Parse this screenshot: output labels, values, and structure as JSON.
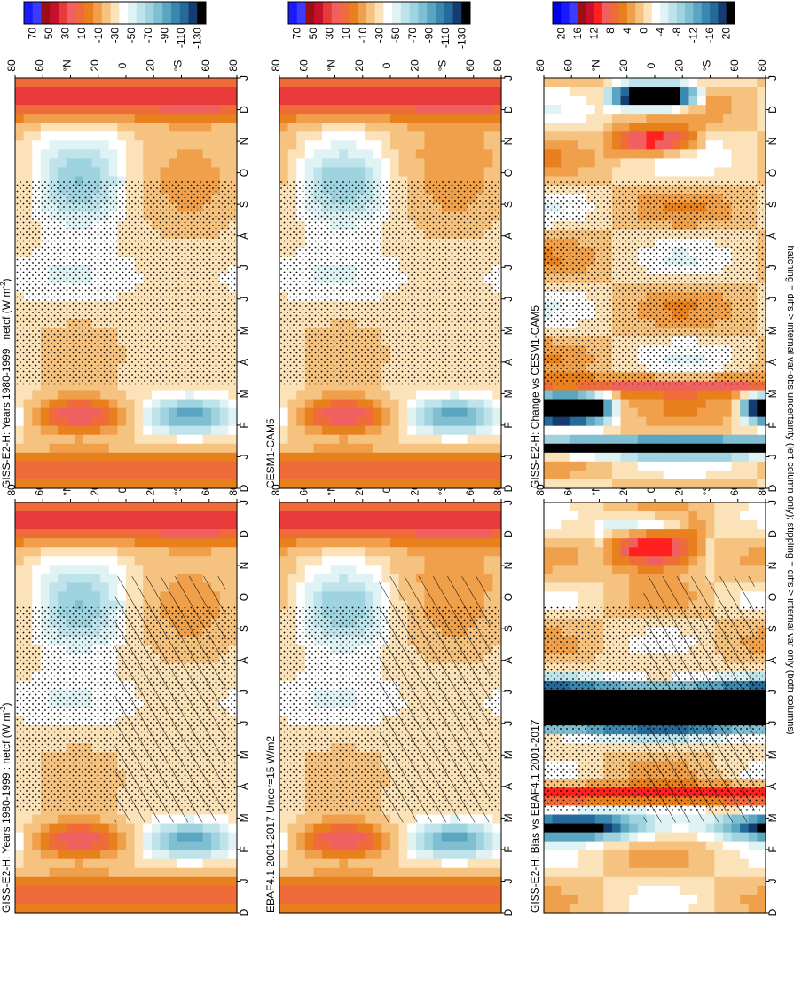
{
  "footnote": "hatching = diffs > internal var-obs uncertainty (left column only); stippling = diffs > internal var only (both columns)",
  "chart_data": [
    {
      "type": "heatmap",
      "title": "GISS-E2-H: Years 1980-1999 : netcf (W m",
      "title_sup": "-2",
      "title_tail": ")",
      "x": [
        "D",
        "J",
        "F",
        "M",
        "A",
        "M",
        "J",
        "J",
        "A",
        "S",
        "O",
        "N",
        "D",
        "J"
      ],
      "y": [
        "80",
        "60",
        "N",
        "20",
        "0",
        "20",
        "S",
        "60",
        "80"
      ],
      "y_deg": [
        "°N",
        "°S"
      ],
      "z_range": [
        -130,
        70
      ],
      "colorbar_labels": [
        "70",
        "50",
        "30",
        "10",
        "-10",
        "-30",
        "-50",
        "-70",
        "-90",
        "-110",
        "-130"
      ],
      "pattern": "clim",
      "hatching": true,
      "stippling": true
    },
    {
      "type": "heatmap",
      "title": "EBAF4.1 2001-2017 Uncer=15 W/m2",
      "x": [
        "D",
        "J",
        "F",
        "M",
        "A",
        "M",
        "J",
        "J",
        "A",
        "S",
        "O",
        "N",
        "D",
        "J"
      ],
      "y": [
        "80",
        "60",
        "N",
        "20",
        "0",
        "20",
        "S",
        "60",
        "80"
      ],
      "y_deg": [
        "°N",
        "°S"
      ],
      "z_range": [
        -130,
        70
      ],
      "colorbar_labels": [
        "70",
        "50",
        "30",
        "10",
        "-10",
        "-30",
        "-50",
        "-70",
        "-90",
        "-110",
        "-130"
      ],
      "pattern": "clim2",
      "hatching": true,
      "stippling": true
    },
    {
      "type": "heatmap",
      "title": "GISS-E2-H: Bias vs EBAF4.1 2001-2017",
      "x": [
        "D",
        "J",
        "F",
        "M",
        "A",
        "M",
        "J",
        "J",
        "A",
        "S",
        "O",
        "N",
        "D",
        "J"
      ],
      "y": [
        "80",
        "60",
        "N",
        "20",
        "0",
        "20",
        "S",
        "60",
        "80"
      ],
      "y_deg": [
        "°N",
        "°S"
      ],
      "z_range": [
        -20,
        20
      ],
      "colorbar_labels": [
        "20",
        "16",
        "12",
        "8",
        "4",
        "0",
        "-4",
        "-8",
        "-12",
        "-16",
        "-20"
      ],
      "pattern": "bias",
      "hatching": true,
      "stippling": true
    },
    {
      "type": "heatmap",
      "title": "GISS-E2-H: Years 1980-1999 : netcf (W m",
      "title_sup": "-2",
      "title_tail": ")",
      "x": [
        "D",
        "J",
        "F",
        "M",
        "A",
        "M",
        "J",
        "J",
        "A",
        "S",
        "O",
        "N",
        "D",
        "J"
      ],
      "y": [
        "80",
        "60",
        "N",
        "20",
        "0",
        "20",
        "S",
        "60",
        "80"
      ],
      "y_deg": [
        "°N",
        "°S"
      ],
      "z_range": [
        -130,
        70
      ],
      "colorbar_labels": [
        "70",
        "50",
        "30",
        "10",
        "-10",
        "-30",
        "-50",
        "-70",
        "-90",
        "-110",
        "-130"
      ],
      "pattern": "clim",
      "hatching": false,
      "stippling": true
    },
    {
      "type": "heatmap",
      "title": "CESM1-CAM5",
      "x": [
        "D",
        "J",
        "F",
        "M",
        "A",
        "M",
        "J",
        "J",
        "A",
        "S",
        "O",
        "N",
        "D",
        "J"
      ],
      "y": [
        "80",
        "60",
        "N",
        "20",
        "0",
        "20",
        "S",
        "60",
        "80"
      ],
      "y_deg": [
        "°N",
        "°S"
      ],
      "z_range": [
        -130,
        70
      ],
      "colorbar_labels": [
        "70",
        "50",
        "30",
        "10",
        "-10",
        "-30",
        "-50",
        "-70",
        "-90",
        "-110",
        "-130"
      ],
      "pattern": "clim2",
      "hatching": false,
      "stippling": true
    },
    {
      "type": "heatmap",
      "title": "GISS-E2-H: Change vs CESM1-CAM5",
      "x": [
        "D",
        "J",
        "F",
        "M",
        "A",
        "M",
        "J",
        "J",
        "A",
        "S",
        "O",
        "N",
        "D",
        "J"
      ],
      "y": [
        "80",
        "60",
        "N",
        "20",
        "0",
        "20",
        "S",
        "60",
        "80"
      ],
      "y_deg": [
        "°N",
        "°S"
      ],
      "z_range": [
        -20,
        20
      ],
      "colorbar_labels": [
        "20",
        "16",
        "12",
        "8",
        "4",
        "0",
        "-4",
        "-8",
        "-12",
        "-16",
        "-20"
      ],
      "pattern": "change",
      "hatching": false,
      "stippling": true
    }
  ],
  "colors": {
    "clim": [
      "#1a1aff",
      "#3c3cff",
      "#9b0f14",
      "#c8102e",
      "#e83a3a",
      "#f06060",
      "#ef6c3a",
      "#e8801e",
      "#f0a04b",
      "#f5c27f",
      "#fbe2b8",
      "#ffffff",
      "#dff2f4",
      "#bfe3ea",
      "#9fd3df",
      "#7fbfd1",
      "#5aa6c2",
      "#3a88b0",
      "#256a9a",
      "#143c70",
      "#000000"
    ],
    "diff": [
      "#0000ee",
      "#1a1aff",
      "#3c3cff",
      "#9b0f14",
      "#c8102e",
      "#ff2020",
      "#f06060",
      "#ef6c3a",
      "#e8801e",
      "#f0a04b",
      "#f5c27f",
      "#fbe2b8",
      "#ffffff",
      "#dff2f4",
      "#bfe3ea",
      "#9fd3df",
      "#7fbfd1",
      "#5aa6c2",
      "#3a88b0",
      "#256a9a",
      "#143c70",
      "#000000"
    ]
  }
}
